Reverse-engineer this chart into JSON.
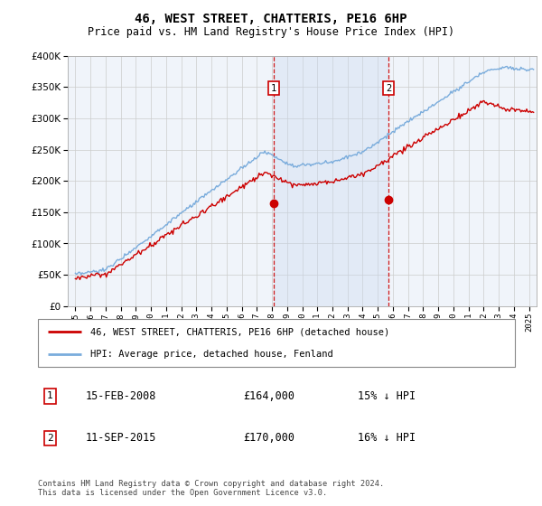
{
  "title": "46, WEST STREET, CHATTERIS, PE16 6HP",
  "subtitle": "Price paid vs. HM Land Registry's House Price Index (HPI)",
  "legend_line1": "46, WEST STREET, CHATTERIS, PE16 6HP (detached house)",
  "legend_line2": "HPI: Average price, detached house, Fenland",
  "annotation1_label": "1",
  "annotation1_date": "15-FEB-2008",
  "annotation1_price": "£164,000",
  "annotation1_hpi": "15% ↓ HPI",
  "annotation1_year": 2008.12,
  "annotation1_value": 164000,
  "annotation2_label": "2",
  "annotation2_date": "11-SEP-2015",
  "annotation2_price": "£170,000",
  "annotation2_hpi": "16% ↓ HPI",
  "annotation2_year": 2015.71,
  "annotation2_value": 170000,
  "shade_start": 2008.12,
  "shade_end": 2015.71,
  "price_line_color": "#cc0000",
  "hpi_line_color": "#7aacdc",
  "ylim_min": 0,
  "ylim_max": 400000,
  "xlim_min": 1994.5,
  "xlim_max": 2025.5,
  "footer": "Contains HM Land Registry data © Crown copyright and database right 2024.\nThis data is licensed under the Open Government Licence v3.0.",
  "background_color": "#ffffff"
}
